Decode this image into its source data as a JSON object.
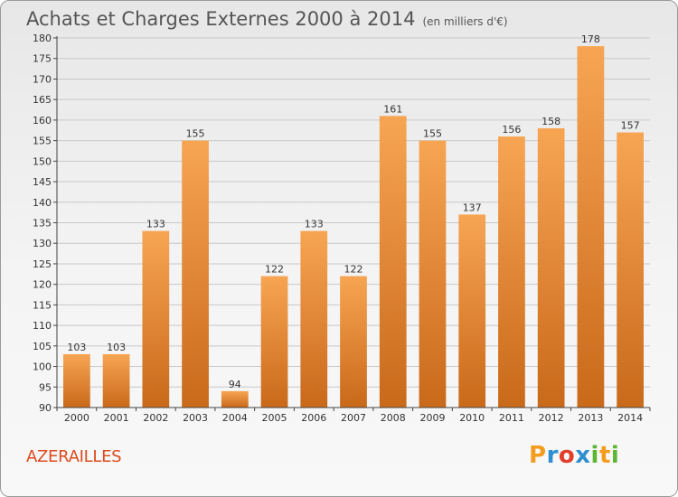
{
  "title": "Achats et Charges Externes 2000 à 2014",
  "subtitle": "(en milliers d'€)",
  "commune": "AZERAILLES",
  "logo": {
    "text": "Proxiti",
    "letters": [
      "P",
      "r",
      "o",
      "x",
      "i",
      "t",
      "i"
    ],
    "colors": [
      "#f39c1e",
      "#2e8fd0",
      "#e33c2a",
      "#2e8fd0",
      "#5cb533",
      "#f39c1e",
      "#5cb533"
    ]
  },
  "colors": {
    "bar_top": "#f7a553",
    "bar_bottom": "#c9691a",
    "title": "#555555",
    "commune": "#dd4a1e",
    "grid": "#c8c8c8"
  },
  "chart_data": {
    "type": "bar",
    "title": "Achats et Charges Externes 2000 à 2014",
    "subtitle": "(en milliers d'€)",
    "categories": [
      "2000",
      "2001",
      "2002",
      "2003",
      "2004",
      "2005",
      "2006",
      "2007",
      "2008",
      "2009",
      "2010",
      "2011",
      "2012",
      "2013",
      "2014"
    ],
    "values": [
      103,
      103,
      133,
      155,
      94,
      122,
      133,
      122,
      161,
      155,
      137,
      156,
      158,
      178,
      157
    ],
    "data_labels": [
      "103",
      "103",
      "133",
      "155",
      "94",
      "122",
      "133",
      "122",
      "161",
      "155",
      "137",
      "156",
      "158",
      "178",
      "157"
    ],
    "yticks": [
      "90",
      "95",
      "100",
      "105",
      "110",
      "115",
      "120",
      "125",
      "130",
      "135",
      "140",
      "145",
      "150",
      "155",
      "160",
      "165",
      "170",
      "175",
      "180"
    ],
    "ylim": [
      90,
      180
    ],
    "grid": true
  }
}
